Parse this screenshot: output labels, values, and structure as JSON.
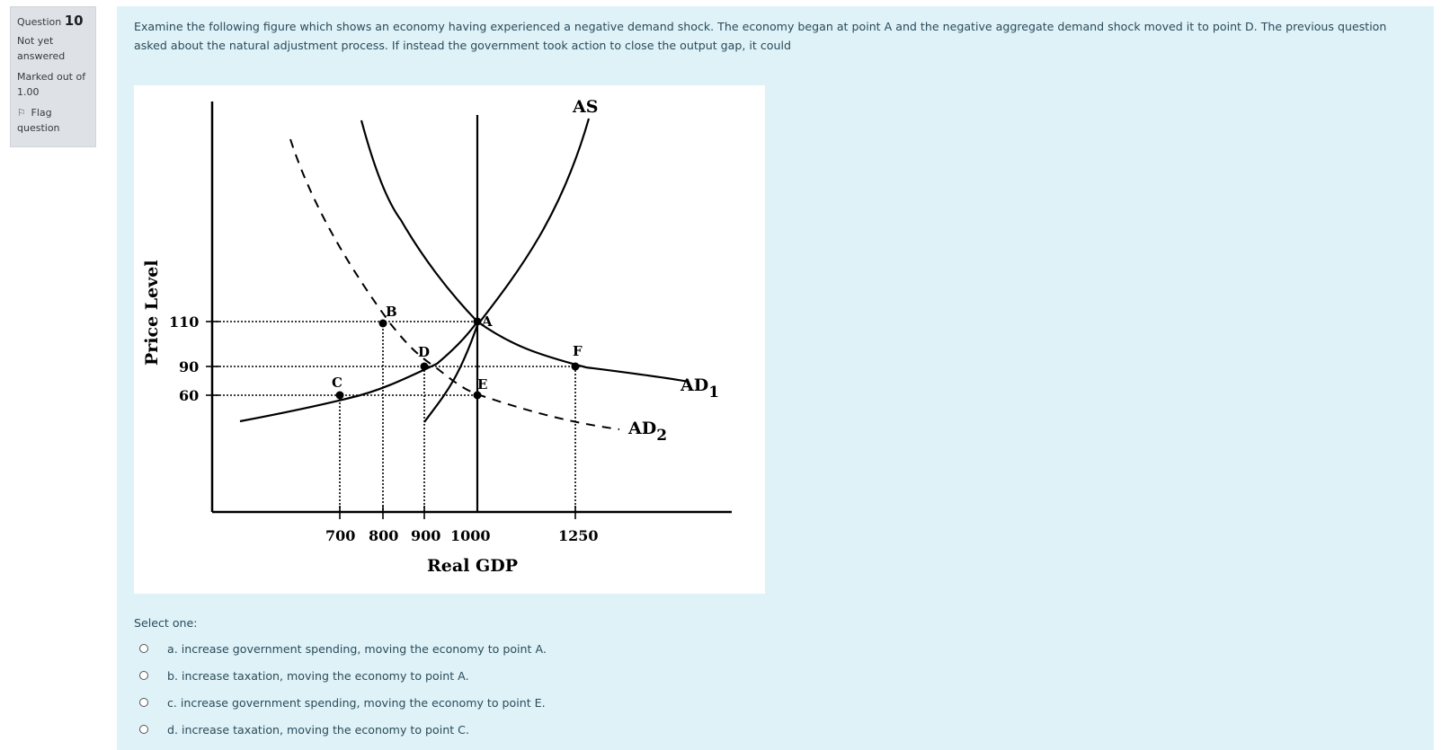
{
  "question_info": {
    "question_label": "Question",
    "question_number": "10",
    "state_line1": "Not yet",
    "state_line2": "answered",
    "grade_line1": "Marked out of",
    "grade_line2": "1.00",
    "flag_line1": "Flag",
    "flag_line2": "question",
    "flag_icon": "flag-icon"
  },
  "question_text": "Examine the following figure which shows an economy having experienced a negative demand shock.  The economy began at point A and the negative aggregate demand shock moved it to point D.  The previous question asked about the natural adjustment process.  If instead the government took action to close the output gap, it could",
  "colors": {
    "question_background": "#def2f8",
    "info_background": "#dee2e6"
  },
  "chart_data": {
    "type": "line",
    "xlabel": "Real GDP",
    "ylabel": "Price Level",
    "x_ticks": [
      "700",
      "800",
      "900",
      "1000",
      "1250"
    ],
    "y_ticks": [
      "110",
      "90",
      "60"
    ],
    "series": [
      {
        "name": "AS",
        "style": "solid"
      },
      {
        "name": "AD1",
        "style": "solid"
      },
      {
        "name": "AD2",
        "style": "dashed"
      }
    ],
    "vertical_line_x": 1000,
    "points": [
      {
        "label": "A",
        "x": 1000,
        "y": 110
      },
      {
        "label": "B",
        "x": 800,
        "y": 110
      },
      {
        "label": "C",
        "x": 700,
        "y": 60
      },
      {
        "label": "D",
        "x": 900,
        "y": 90
      },
      {
        "label": "E",
        "x": 1000,
        "y": 60
      },
      {
        "label": "F",
        "x": 1250,
        "y": 90
      }
    ],
    "labels": {
      "as": "AS",
      "ad1_main": "AD",
      "ad1_sub": "1",
      "ad2_main": "AD",
      "ad2_sub": "2"
    }
  },
  "select_prompt": "Select one:",
  "answers": [
    "a. increase government spending, moving the economy to point A.",
    "b. increase taxation, moving the economy to point A.",
    "c. increase government spending, moving the economy to point E.",
    "d. increase taxation, moving the economy to point C."
  ]
}
